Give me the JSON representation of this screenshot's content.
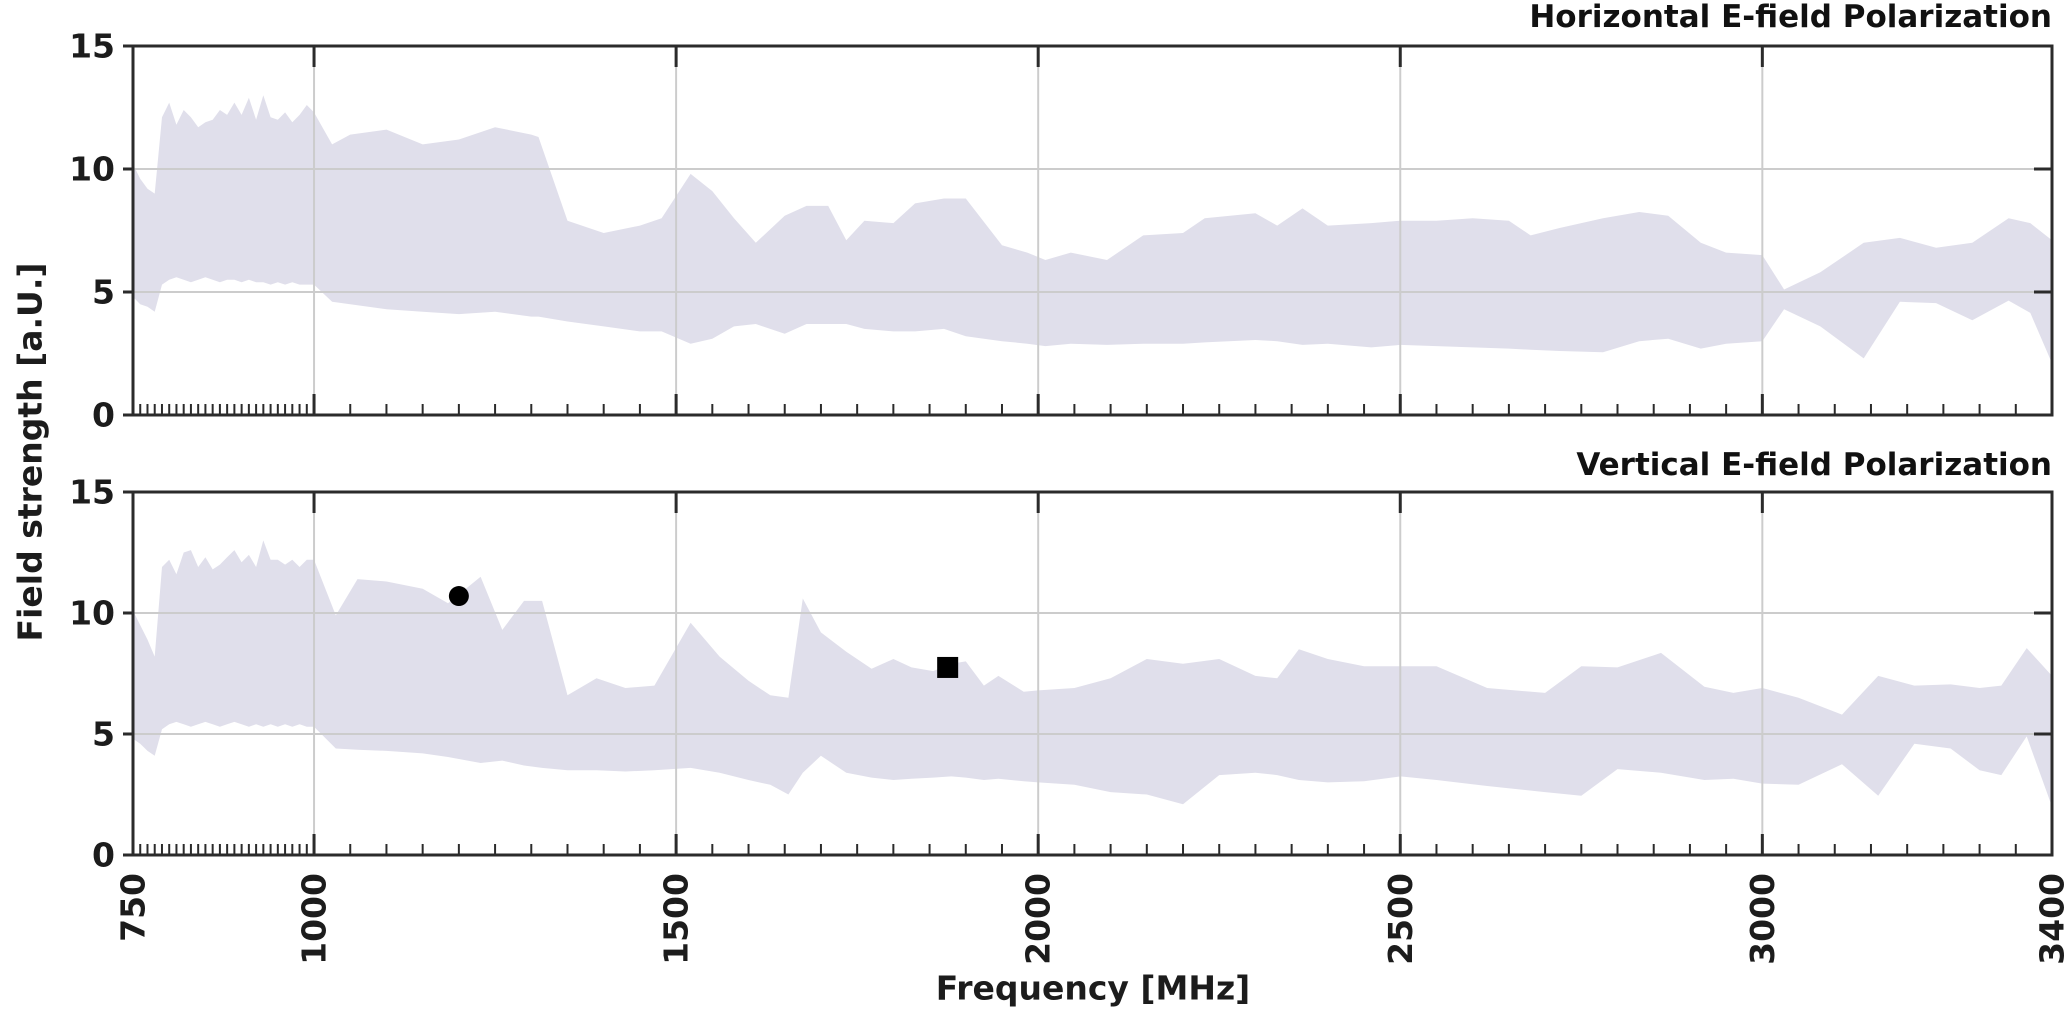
{
  "figure": {
    "ylabel": "Field strength [a.U.]",
    "xlabel": "Frequency [MHz]",
    "background": "#ffffff"
  },
  "chart_data": [
    {
      "type": "area",
      "title": "Horizontal E-field Polarization",
      "xlabel": "Frequency [MHz]",
      "ylabel": "Field strength [a.U.]",
      "xlim": [
        750,
        3400
      ],
      "ylim": [
        0,
        15
      ],
      "x_major_ticks": [
        750,
        1000,
        1500,
        2000,
        2500,
        3000,
        3400
      ],
      "y_ticks": [
        0,
        5,
        10,
        15
      ],
      "x_minor_break": 1000,
      "x_minor_step_low": 10,
      "x_minor_step_high": 50,
      "grid": true,
      "legend": "none",
      "x_tick_labels_visible": false,
      "band_color": "#e0dfeb",
      "grid_color": "#cccccc",
      "axis_color": "#2b2b2b",
      "series": [
        {
          "name": "upper envelope (max)",
          "x": [
            750,
            760,
            770,
            780,
            790,
            800,
            810,
            820,
            830,
            840,
            850,
            860,
            870,
            880,
            890,
            900,
            910,
            920,
            930,
            940,
            950,
            960,
            970,
            980,
            990,
            1000,
            1025,
            1050,
            1100,
            1150,
            1200,
            1250,
            1300,
            1310,
            1350,
            1400,
            1450,
            1480,
            1520,
            1550,
            1580,
            1610,
            1650,
            1680,
            1710,
            1735,
            1760,
            1800,
            1830,
            1870,
            1900,
            1950,
            1985,
            2010,
            2045,
            2095,
            2145,
            2200,
            2230,
            2300,
            2330,
            2365,
            2400,
            2460,
            2500,
            2550,
            2600,
            2650,
            2680,
            2720,
            2780,
            2830,
            2870,
            2915,
            2950,
            3000,
            3030,
            3080,
            3140,
            3190,
            3240,
            3290,
            3340,
            3370,
            3400
          ],
          "values": [
            10.2,
            9.6,
            9.2,
            9.0,
            12.1,
            12.7,
            11.8,
            12.4,
            12.1,
            11.7,
            11.9,
            12.0,
            12.4,
            12.2,
            12.7,
            12.2,
            12.9,
            12.0,
            13.0,
            12.1,
            12.0,
            12.3,
            11.9,
            12.2,
            12.6,
            12.3,
            11.0,
            11.4,
            11.6,
            11.0,
            11.2,
            11.7,
            11.4,
            11.3,
            7.9,
            7.4,
            7.7,
            8.0,
            9.8,
            9.1,
            8.0,
            7.0,
            8.1,
            8.5,
            8.5,
            7.1,
            7.9,
            7.8,
            8.6,
            8.8,
            8.8,
            6.9,
            6.6,
            6.3,
            6.6,
            6.3,
            7.3,
            7.4,
            8.0,
            8.2,
            7.7,
            8.4,
            7.7,
            7.8,
            7.9,
            7.9,
            8.0,
            7.9,
            7.3,
            7.6,
            8.0,
            8.25,
            8.1,
            7.0,
            6.6,
            6.5,
            5.1,
            5.8,
            7.0,
            7.2,
            6.8,
            7.0,
            8.0,
            7.8,
            7.1
          ]
        },
        {
          "name": "lower envelope (min)",
          "x": [
            750,
            760,
            770,
            780,
            790,
            800,
            810,
            820,
            830,
            840,
            850,
            860,
            870,
            880,
            890,
            900,
            910,
            920,
            930,
            940,
            950,
            960,
            970,
            980,
            990,
            1000,
            1025,
            1050,
            1100,
            1150,
            1200,
            1250,
            1300,
            1310,
            1350,
            1400,
            1450,
            1480,
            1520,
            1550,
            1580,
            1610,
            1650,
            1680,
            1710,
            1735,
            1760,
            1800,
            1830,
            1870,
            1900,
            1950,
            1985,
            2010,
            2045,
            2095,
            2145,
            2200,
            2230,
            2300,
            2330,
            2365,
            2400,
            2460,
            2500,
            2550,
            2600,
            2650,
            2680,
            2720,
            2780,
            2830,
            2870,
            2915,
            2950,
            3000,
            3030,
            3080,
            3140,
            3190,
            3240,
            3290,
            3340,
            3370,
            3400
          ],
          "values": [
            4.8,
            4.5,
            4.4,
            4.2,
            5.3,
            5.5,
            5.6,
            5.5,
            5.4,
            5.5,
            5.6,
            5.5,
            5.4,
            5.5,
            5.5,
            5.4,
            5.5,
            5.4,
            5.4,
            5.3,
            5.4,
            5.3,
            5.4,
            5.3,
            5.3,
            5.3,
            4.6,
            4.5,
            4.3,
            4.2,
            4.1,
            4.2,
            4.0,
            4.0,
            3.8,
            3.6,
            3.4,
            3.4,
            2.9,
            3.1,
            3.6,
            3.7,
            3.3,
            3.7,
            3.7,
            3.7,
            3.5,
            3.4,
            3.4,
            3.5,
            3.2,
            3.0,
            2.9,
            2.8,
            2.9,
            2.85,
            2.9,
            2.9,
            2.95,
            3.05,
            3.0,
            2.85,
            2.9,
            2.75,
            2.85,
            2.8,
            2.75,
            2.7,
            2.65,
            2.6,
            2.55,
            3.0,
            3.1,
            2.7,
            2.9,
            3.0,
            4.3,
            3.6,
            2.3,
            4.6,
            4.55,
            3.85,
            4.65,
            4.15,
            2.1
          ]
        }
      ],
      "markers": []
    },
    {
      "type": "area",
      "title": "Vertical E-field Polarization",
      "xlabel": "Frequency [MHz]",
      "ylabel": "Field strength [a.U.]",
      "xlim": [
        750,
        3400
      ],
      "ylim": [
        0,
        15
      ],
      "x_major_ticks": [
        750,
        1000,
        1500,
        2000,
        2500,
        3000,
        3400
      ],
      "y_ticks": [
        0,
        5,
        10,
        15
      ],
      "x_minor_break": 1000,
      "x_minor_step_low": 10,
      "x_minor_step_high": 50,
      "grid": true,
      "legend": "none",
      "x_tick_labels_visible": true,
      "band_color": "#e0dfeb",
      "grid_color": "#cccccc",
      "axis_color": "#2b2b2b",
      "series": [
        {
          "name": "upper envelope (max)",
          "x": [
            750,
            760,
            770,
            780,
            790,
            800,
            810,
            820,
            830,
            840,
            850,
            860,
            870,
            880,
            890,
            900,
            910,
            920,
            930,
            940,
            950,
            960,
            970,
            980,
            990,
            1000,
            1030,
            1060,
            1100,
            1150,
            1185,
            1230,
            1260,
            1290,
            1315,
            1350,
            1390,
            1430,
            1470,
            1520,
            1560,
            1600,
            1630,
            1655,
            1675,
            1700,
            1735,
            1770,
            1800,
            1825,
            1855,
            1880,
            1900,
            1925,
            1945,
            1980,
            2000,
            2050,
            2100,
            2150,
            2200,
            2250,
            2300,
            2330,
            2360,
            2400,
            2450,
            2500,
            2550,
            2620,
            2700,
            2750,
            2800,
            2860,
            2920,
            2960,
            3000,
            3050,
            3110,
            3160,
            3210,
            3260,
            3300,
            3330,
            3365,
            3400
          ],
          "values": [
            10.1,
            9.5,
            8.9,
            8.2,
            11.9,
            12.2,
            11.6,
            12.5,
            12.6,
            11.9,
            12.3,
            11.8,
            12.0,
            12.3,
            12.6,
            12.1,
            12.4,
            11.9,
            13.0,
            12.2,
            12.2,
            12.0,
            12.2,
            11.9,
            12.2,
            12.2,
            9.9,
            11.4,
            11.3,
            11.0,
            10.4,
            11.5,
            9.3,
            10.5,
            10.5,
            6.6,
            7.3,
            6.9,
            7.0,
            9.6,
            8.2,
            7.2,
            6.6,
            6.5,
            10.6,
            9.2,
            8.4,
            7.7,
            8.1,
            7.75,
            7.6,
            7.9,
            8.0,
            7.0,
            7.4,
            6.75,
            6.8,
            6.9,
            7.3,
            8.1,
            7.9,
            8.1,
            7.4,
            7.3,
            8.5,
            8.1,
            7.8,
            7.8,
            7.8,
            6.9,
            6.7,
            7.8,
            7.75,
            8.35,
            6.95,
            6.7,
            6.9,
            6.5,
            5.8,
            7.4,
            7.0,
            7.05,
            6.9,
            7.0,
            8.55,
            7.4
          ]
        },
        {
          "name": "lower envelope (min)",
          "x": [
            750,
            760,
            770,
            780,
            790,
            800,
            810,
            820,
            830,
            840,
            850,
            860,
            870,
            880,
            890,
            900,
            910,
            920,
            930,
            940,
            950,
            960,
            970,
            980,
            990,
            1000,
            1030,
            1060,
            1100,
            1150,
            1185,
            1230,
            1260,
            1290,
            1315,
            1350,
            1390,
            1430,
            1470,
            1520,
            1560,
            1600,
            1630,
            1655,
            1675,
            1700,
            1735,
            1770,
            1800,
            1825,
            1855,
            1880,
            1900,
            1925,
            1945,
            1980,
            2000,
            2050,
            2100,
            2150,
            2200,
            2250,
            2300,
            2330,
            2360,
            2400,
            2450,
            2500,
            2550,
            2620,
            2700,
            2750,
            2800,
            2860,
            2920,
            2960,
            3000,
            3050,
            3110,
            3160,
            3210,
            3260,
            3300,
            3330,
            3365,
            3400
          ],
          "values": [
            4.8,
            4.6,
            4.3,
            4.1,
            5.2,
            5.4,
            5.5,
            5.4,
            5.3,
            5.4,
            5.5,
            5.4,
            5.3,
            5.4,
            5.5,
            5.4,
            5.3,
            5.4,
            5.3,
            5.4,
            5.3,
            5.4,
            5.3,
            5.4,
            5.3,
            5.3,
            4.4,
            4.35,
            4.3,
            4.2,
            4.05,
            3.8,
            3.9,
            3.7,
            3.6,
            3.5,
            3.5,
            3.45,
            3.5,
            3.6,
            3.4,
            3.1,
            2.9,
            2.5,
            3.4,
            4.1,
            3.4,
            3.2,
            3.1,
            3.15,
            3.2,
            3.25,
            3.2,
            3.1,
            3.15,
            3.05,
            3.0,
            2.9,
            2.6,
            2.5,
            2.1,
            3.3,
            3.4,
            3.3,
            3.1,
            3.0,
            3.05,
            3.25,
            3.1,
            2.85,
            2.6,
            2.45,
            3.55,
            3.4,
            3.1,
            3.15,
            2.95,
            2.9,
            3.75,
            2.45,
            4.6,
            4.4,
            3.5,
            3.3,
            4.9,
            2.0
          ]
        }
      ],
      "markers": [
        {
          "shape": "circle",
          "x": 1200,
          "y": 10.7,
          "color": "#000000"
        },
        {
          "shape": "square",
          "x": 1875,
          "y": 7.75,
          "color": "#000000"
        }
      ]
    }
  ]
}
